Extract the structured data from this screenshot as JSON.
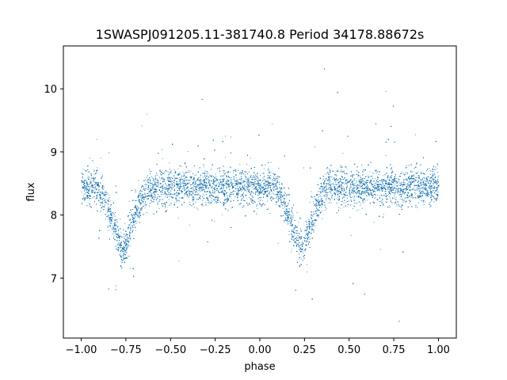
{
  "chart_data": {
    "type": "scatter",
    "title": "1SWASPJ091205.11-381740.8 Period 34178.88672s",
    "xlabel": "phase",
    "ylabel": "flux",
    "xlim": [
      -1.1,
      1.1
    ],
    "ylim": [
      6.05,
      10.68
    ],
    "xticks": [
      -1.0,
      -0.75,
      -0.5,
      -0.25,
      0.0,
      0.25,
      0.5,
      0.75,
      1.0
    ],
    "xtick_labels": [
      "−1.00",
      "−0.75",
      "−0.50",
      "−0.25",
      "0.00",
      "0.25",
      "0.50",
      "0.75",
      "1.00"
    ],
    "yticks": [
      7,
      8,
      9,
      10
    ],
    "ytick_labels": [
      "7",
      "8",
      "9",
      "10"
    ],
    "grid": false,
    "point_color": "#1f77b4",
    "series": [
      {
        "phase_range": [
          -1.0,
          1.0
        ],
        "baseline_flux": 8.45,
        "primary_eclipse": {
          "phase": -0.77,
          "min_flux": 7.4
        },
        "secondary_eclipse": {
          "phase": 0.23,
          "min_flux": 7.4
        },
        "approx_points": 24000
      }
    ]
  }
}
